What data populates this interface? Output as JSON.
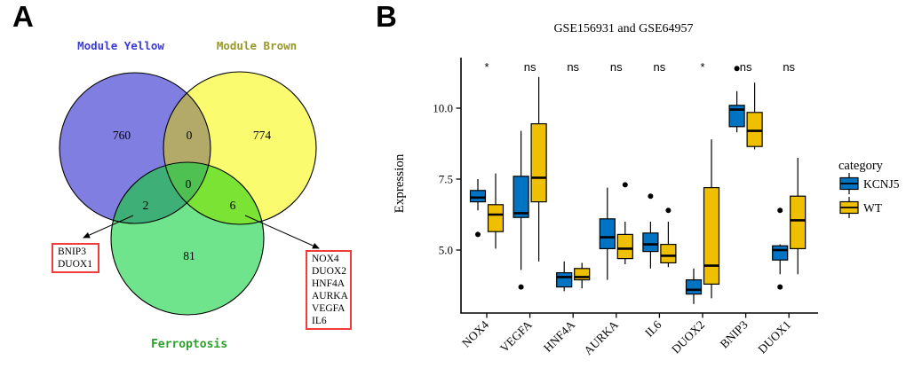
{
  "figure": {
    "panel_a_label": "A",
    "panel_b_label": "B",
    "background": "#FFFFFF"
  },
  "chart_data": [
    {
      "type": "venn",
      "sets": [
        {
          "label": "Module Yellow",
          "label_color": "#3A3AD6",
          "fill": "#807EE1",
          "unique_count": 760
        },
        {
          "label": "Module Brown",
          "label_color": "#97972A",
          "fill": "#FBFB70",
          "unique_count": 774
        },
        {
          "label": "Ferroptosis",
          "label_color": "#2DA02D",
          "fill": "#6FE48D",
          "unique_count": 81
        }
      ],
      "overlap_counts": {
        "yellow_and_brown": 0,
        "yellow_and_ferroptosis": 2,
        "brown_and_ferroptosis": 6,
        "all_three": 0
      },
      "overlap_fills": {
        "yellow_brown": "#B3AA69",
        "yellow_ferroptosis": "#3EAF76",
        "brown_ferroptosis": "#7BE334",
        "center": "#4FC153"
      },
      "callouts": [
        {
          "genes": [
            "BNIP3",
            "DUOX1"
          ],
          "border_color": "#F23B3B"
        },
        {
          "genes": [
            "NOX4",
            "DUOX2",
            "HNF4A",
            "AURKA",
            "VEGFA",
            "IL6"
          ],
          "border_color": "#F23B3B"
        }
      ]
    },
    {
      "type": "boxplot",
      "title": "GSE156931 and GSE64957",
      "ylabel": "Expression",
      "yticks": [
        5.0,
        7.5,
        10.0
      ],
      "ylim": [
        2.8,
        11.6
      ],
      "grid": false,
      "legend_position": "right",
      "categories": [
        "NOX4",
        "VEGFA",
        "HNF4A",
        "AURKA",
        "IL6",
        "DUOX2",
        "BNIP3",
        "DUOX1"
      ],
      "significance": [
        "*",
        "ns",
        "ns",
        "ns",
        "ns",
        "*",
        "ns",
        "ns"
      ],
      "legend": {
        "title": "category",
        "entries": [
          {
            "label": "KCNJ5",
            "color": "#0073C2"
          },
          {
            "label": "WT",
            "color": "#EFC000"
          }
        ]
      },
      "series": [
        {
          "name": "KCNJ5",
          "color": "#0073C2",
          "boxes": [
            {
              "low": 6.4,
              "q1": 6.7,
              "median": 6.85,
              "q3": 7.1,
              "high": 7.5,
              "outliers": [
                5.55
              ]
            },
            {
              "low": 4.3,
              "q1": 6.15,
              "median": 6.3,
              "q3": 7.6,
              "high": 9.2,
              "outliers": [
                3.7
              ]
            },
            {
              "low": 3.55,
              "q1": 3.7,
              "median": 4.05,
              "q3": 4.2,
              "high": 4.6,
              "outliers": []
            },
            {
              "low": 3.95,
              "q1": 5.05,
              "median": 5.45,
              "q3": 6.1,
              "high": 7.2,
              "outliers": []
            },
            {
              "low": 4.35,
              "q1": 4.95,
              "median": 5.2,
              "q3": 5.6,
              "high": 6.0,
              "outliers": [
                6.9
              ]
            },
            {
              "low": 3.1,
              "q1": 3.45,
              "median": 3.6,
              "q3": 3.95,
              "high": 4.35,
              "outliers": []
            },
            {
              "low": 9.15,
              "q1": 9.35,
              "median": 9.95,
              "q3": 10.1,
              "high": 10.6,
              "outliers": [
                11.4
              ]
            },
            {
              "low": 4.15,
              "q1": 4.65,
              "median": 5.0,
              "q3": 5.15,
              "high": 5.2,
              "outliers": [
                6.4,
                3.7
              ]
            }
          ]
        },
        {
          "name": "WT",
          "color": "#EFC000",
          "boxes": [
            {
              "low": 5.05,
              "q1": 5.65,
              "median": 6.25,
              "q3": 6.6,
              "high": 7.7,
              "outliers": []
            },
            {
              "low": 4.6,
              "q1": 6.7,
              "median": 7.55,
              "q3": 9.45,
              "high": 11.1,
              "outliers": []
            },
            {
              "low": 3.65,
              "q1": 3.95,
              "median": 4.05,
              "q3": 4.35,
              "high": 4.55,
              "outliers": []
            },
            {
              "low": 4.5,
              "q1": 4.7,
              "median": 5.05,
              "q3": 5.55,
              "high": 6.0,
              "outliers": [
                7.3
              ]
            },
            {
              "low": 4.4,
              "q1": 4.55,
              "median": 4.8,
              "q3": 5.2,
              "high": 6.0,
              "outliers": [
                6.4
              ]
            },
            {
              "low": 3.3,
              "q1": 3.8,
              "median": 4.45,
              "q3": 7.2,
              "high": 8.9,
              "outliers": []
            },
            {
              "low": 8.55,
              "q1": 8.65,
              "median": 9.2,
              "q3": 9.85,
              "high": 10.9,
              "outliers": []
            },
            {
              "low": 4.15,
              "q1": 5.05,
              "median": 6.05,
              "q3": 6.9,
              "high": 8.25,
              "outliers": []
            }
          ]
        }
      ]
    }
  ]
}
